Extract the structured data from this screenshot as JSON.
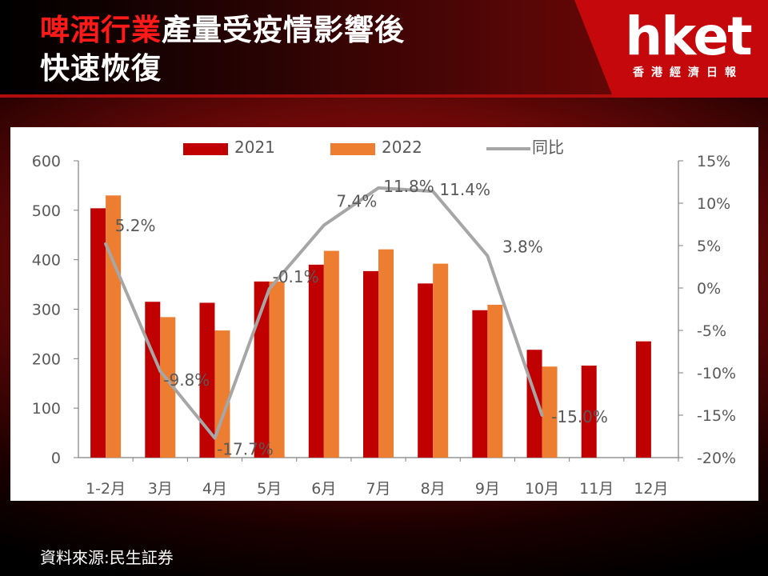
{
  "header": {
    "title_highlight": "啤酒行業",
    "title_rest_line1": "產量受疫情影響後",
    "title_line2": "快速恢復"
  },
  "logo": {
    "brand": "hket",
    "subtitle": "香港經濟日報"
  },
  "source": "資料來源:民生証券",
  "colors": {
    "series_2021": "#c00000",
    "series_2022": "#ed7d31",
    "yoy_line": "#a6a6a6",
    "title_highlight": "#ff1a1a"
  },
  "chart_data": {
    "type": "bar",
    "categories": [
      "1-2月",
      "3月",
      "4月",
      "5月",
      "6月",
      "7月",
      "8月",
      "9月",
      "10月",
      "11月",
      "12月"
    ],
    "series": [
      {
        "name": "2021",
        "values": [
          504,
          315,
          313,
          356,
          390,
          377,
          352,
          298,
          218,
          186,
          235
        ]
      },
      {
        "name": "2022",
        "values": [
          530,
          284,
          257,
          356,
          418,
          421,
          392,
          309,
          184,
          null,
          null
        ]
      },
      {
        "name": "同比",
        "type": "line",
        "axis": "right",
        "values": [
          5.2,
          -9.8,
          -17.7,
          -0.1,
          7.4,
          11.8,
          11.4,
          3.8,
          -15.0,
          null,
          null
        ]
      }
    ],
    "data_labels": [
      "5.2%",
      "-9.8%",
      "-17.7%",
      "-0.1%",
      "7.4%",
      "11.8%",
      "11.4%",
      "3.8%",
      "-15.0%"
    ],
    "ylim": [
      0,
      600
    ],
    "yticks": [
      "0",
      "100",
      "200",
      "300",
      "400",
      "500",
      "600"
    ],
    "ylim_right": [
      -20,
      15
    ],
    "yticks_right": [
      "-20%",
      "-15%",
      "-10%",
      "-5%",
      "0%",
      "5%",
      "10%",
      "15%"
    ],
    "legend_position": "top-center",
    "grid": false
  }
}
